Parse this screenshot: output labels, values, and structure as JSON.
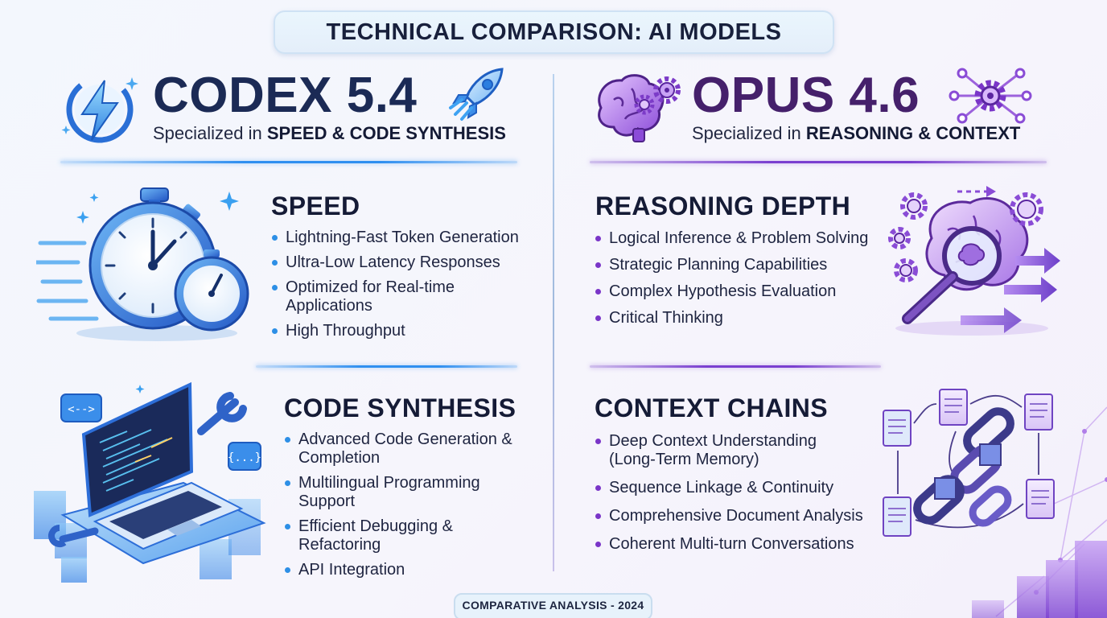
{
  "header": {
    "title": "TECHNICAL COMPARISON: AI MODELS"
  },
  "codex": {
    "name": "CODEX 5.4",
    "subtitle_prefix": "Specialized in ",
    "subtitle_bold": "SPEED & CODE SYNTHESIS",
    "accent_color": "#2f8ff0",
    "sections": [
      {
        "title": "SPEED",
        "bullets": [
          "Lightning-Fast Token Generation",
          "Ultra-Low Latency Responses",
          "Optimized for Real-time Applications",
          "High Throughput"
        ]
      },
      {
        "title": "CODE SYNTHESIS",
        "bullets": [
          "Advanced Code Generation & Completion",
          "Multilingual Programming Support",
          "Efficient Debugging & Refactoring",
          "API Integration"
        ]
      }
    ],
    "icons": [
      "lightning-bolt-icon",
      "rocket-icon",
      "stopwatch-icon",
      "laptop-code-icon",
      "wrench-icon"
    ]
  },
  "opus": {
    "name": "OPUS 4.6",
    "subtitle_prefix": "Specialized in ",
    "subtitle_bold": "REASONING & CONTEXT",
    "accent_color": "#7a3fd0",
    "sections": [
      {
        "title": "REASONING DEPTH",
        "bullets": [
          "Logical Inference & Problem Solving",
          "Strategic Planning Capabilities",
          "Complex Hypothesis Evaluation",
          "Critical Thinking"
        ]
      },
      {
        "title": "CONTEXT CHAINS",
        "bullets": [
          "Deep Context Understanding (Long-Term Memory)",
          "Sequence Linkage & Continuity",
          "Comprehensive Document Analysis",
          "Coherent Multi-turn Conversations"
        ]
      }
    ],
    "icons": [
      "brain-gears-icon",
      "network-gear-icon",
      "brain-magnifier-icon",
      "chain-documents-icon"
    ]
  },
  "footer": {
    "label": "COMPARATIVE ANALYSIS - 2024"
  },
  "colors": {
    "codex_blue": "#2f8ff0",
    "opus_purple": "#7a3fd0",
    "text_dark": "#151b36"
  }
}
